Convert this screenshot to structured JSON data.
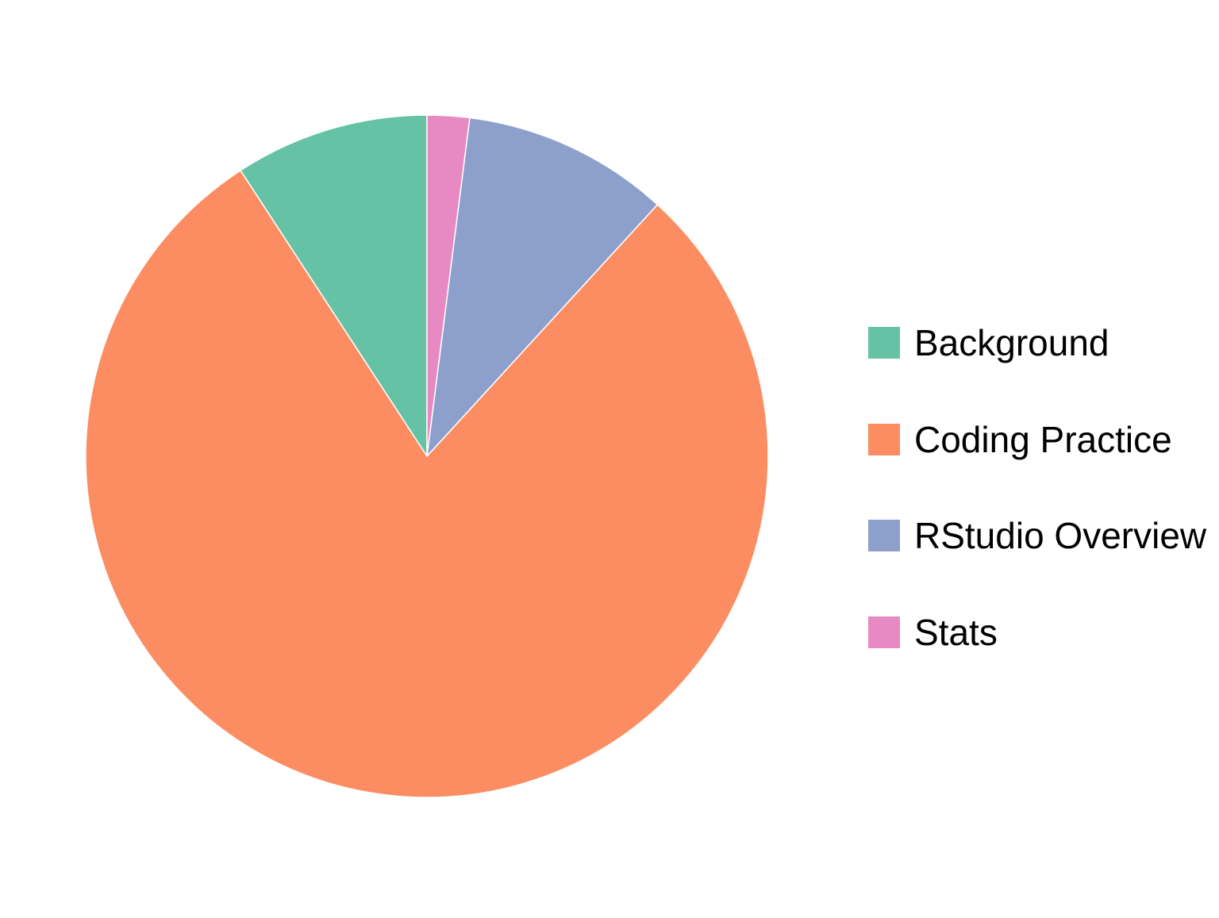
{
  "chart_data": {
    "type": "pie",
    "title": "",
    "start_angle_deg": 0,
    "direction": "counterclockwise",
    "border_color": "#ffffff",
    "legend_position": "right",
    "slices": [
      {
        "label": "Background",
        "value": 9.2,
        "color": "#66c2a5"
      },
      {
        "label": "Coding Practice",
        "value": 79.0,
        "color": "#fc8d62"
      },
      {
        "label": "RStudio Overview",
        "value": 9.8,
        "color": "#8da0cb"
      },
      {
        "label": "Stats",
        "value": 2.0,
        "color": "#e78ac3"
      }
    ]
  }
}
